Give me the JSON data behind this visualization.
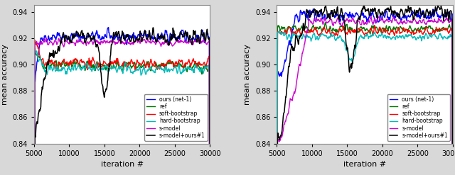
{
  "xlim": [
    5000,
    30000
  ],
  "ylim": [
    0.84,
    0.945
  ],
  "yticks": [
    0.84,
    0.86,
    0.88,
    0.9,
    0.92,
    0.94
  ],
  "xticks": [
    5000,
    10000,
    15000,
    20000,
    25000,
    30000
  ],
  "xlabel": "iteration #",
  "ylabel": "mean accuracy",
  "colors": {
    "ours": "#0000ff",
    "ref": "#007700",
    "soft": "#ff0000",
    "hard": "#00bbbb",
    "smodel": "#cc00cc",
    "smodel_ours": "#000000"
  },
  "legend_labels": [
    "ours (net-1)",
    "ref",
    "soft-bootstrap",
    "hard-bootstrap",
    "s-model",
    "s-model+ours#1"
  ],
  "n_points": 500,
  "figsize": [
    6.4,
    2.47
  ],
  "dpi": 100,
  "fig_background": "#d8d8d8",
  "ax_background": "#ffffff"
}
